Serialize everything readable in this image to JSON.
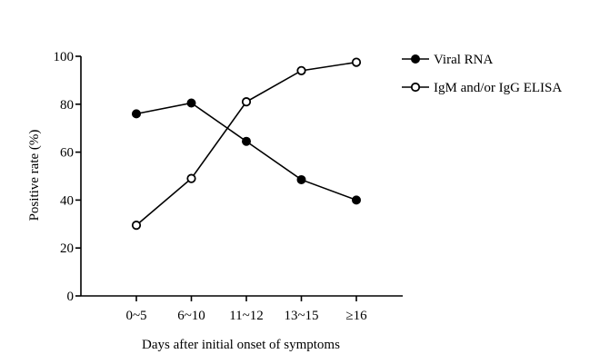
{
  "chart_data": {
    "type": "line",
    "title": "",
    "xlabel": "Days after initial onset of symptoms",
    "ylabel": "Positive rate (%)",
    "categories": [
      "0~5",
      "6~10",
      "11~12",
      "13~15",
      "≥16"
    ],
    "ylim": [
      0,
      100
    ],
    "yticks": [
      0,
      20,
      40,
      60,
      80,
      100
    ],
    "grid": false,
    "legend_position": "top-right",
    "series": [
      {
        "name": "Viral RNA",
        "marker": "filled-circle",
        "values": [
          76,
          80.5,
          64.5,
          48.5,
          40
        ]
      },
      {
        "name": "IgM and/or IgG ELISA",
        "marker": "open-circle",
        "values": [
          29.5,
          49,
          81,
          94,
          97.5
        ]
      }
    ],
    "colors": {
      "line": "#000000",
      "background": "#ffffff"
    }
  }
}
